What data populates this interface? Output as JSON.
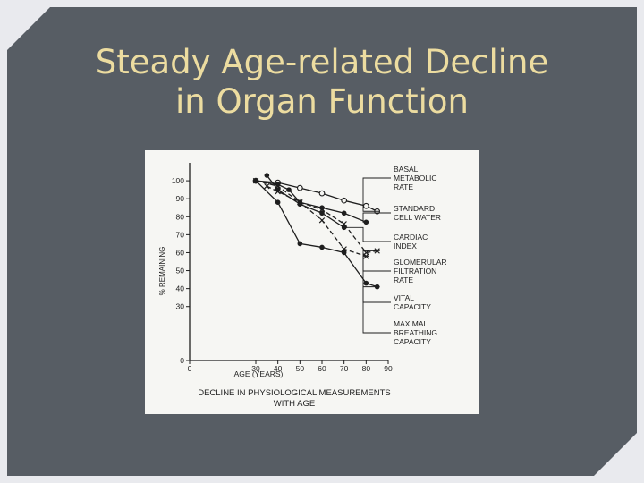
{
  "slide": {
    "title_line1": "Steady Age-related Decline",
    "title_line2": "in Organ Function"
  },
  "chart_data": {
    "type": "line",
    "title": "DECLINE IN PHYSIOLOGICAL MEASUREMENTS WITH AGE",
    "title_line1": "DECLINE IN PHYSIOLOGICAL MEASUREMENTS",
    "title_line2": "WITH AGE",
    "xlabel": "AGE (YEARS)",
    "ylabel": "% REMAINING",
    "xlim": [
      0,
      90
    ],
    "ylim": [
      0,
      110
    ],
    "xticks": [
      0,
      30,
      40,
      50,
      60,
      70,
      80,
      90
    ],
    "yticks": [
      0,
      30,
      40,
      50,
      60,
      70,
      80,
      90,
      100
    ],
    "grid": false,
    "legend": "right (labels with leader lines)",
    "series": [
      {
        "name": "BASAL METABOLIC RATE",
        "label_lines": [
          "BASAL",
          "METABOLIC",
          "RATE"
        ],
        "marker": "open-circle",
        "line": "solid",
        "x": [
          30,
          40,
          50,
          60,
          70,
          80,
          85
        ],
        "y": [
          100,
          99,
          96,
          93,
          89,
          86,
          83
        ]
      },
      {
        "name": "STANDARD CELL WATER",
        "label_lines": [
          "STANDARD",
          "CELL WATER"
        ],
        "marker": "dot",
        "line": "solid",
        "x": [
          30,
          40,
          45,
          50,
          60,
          70,
          80
        ],
        "y": [
          100,
          98,
          95,
          88,
          85,
          82,
          77
        ]
      },
      {
        "name": "CARDIAC INDEX",
        "label_lines": [
          "CARDIAC",
          "INDEX"
        ],
        "marker": "dot",
        "line": "solid",
        "x": [
          35,
          40,
          50,
          60,
          70
        ],
        "y": [
          103,
          95,
          87,
          82,
          74
        ]
      },
      {
        "name": "GLOMERULAR FILTRATION RATE",
        "label_lines": [
          "GLOMERULAR",
          "FILTRATION",
          "RATE"
        ],
        "marker": "x",
        "line": "dashed",
        "x": [
          30,
          40,
          50,
          60,
          70,
          80,
          85
        ],
        "y": [
          100,
          97,
          88,
          84,
          76,
          60,
          61
        ]
      },
      {
        "name": "VITAL CAPACITY",
        "label_lines": [
          "VITAL",
          "CAPACITY"
        ],
        "marker": "x",
        "line": "dashed",
        "x": [
          35,
          40,
          50,
          60,
          70,
          80
        ],
        "y": [
          97,
          94,
          88,
          78,
          62,
          58
        ]
      },
      {
        "name": "MAXIMAL BREATHING CAPACITY",
        "label_lines": [
          "MAXIMAL",
          "BREATHING",
          "CAPACITY"
        ],
        "marker": "dot",
        "line": "solid",
        "x": [
          30,
          40,
          50,
          60,
          70,
          80,
          85
        ],
        "y": [
          100,
          88,
          65,
          63,
          60,
          43,
          41
        ]
      }
    ]
  }
}
